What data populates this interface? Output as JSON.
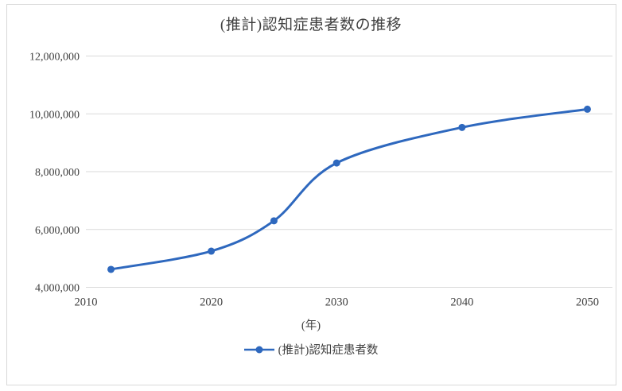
{
  "title": "(推計)認知症患者数の推移",
  "axis": {
    "x_label": "(年)"
  },
  "legend": {
    "label": "(推計)認知症患者数"
  },
  "colors": {
    "line": "#2e68be",
    "marker": "#2e68be",
    "grid": "#d9d9d9",
    "frame": "#d9d9d9",
    "text": "#404040",
    "background": "#ffffff"
  },
  "chart_data": {
    "type": "line",
    "title": "(推計)認知症患者数の推移",
    "x": [
      2012,
      2020,
      2025,
      2030,
      2040,
      2050
    ],
    "series": [
      {
        "name": "(推計)認知症患者数",
        "values": [
          4620000,
          5250000,
          6300000,
          8300000,
          9530000,
          10160000
        ]
      }
    ],
    "xlabel": "(年)",
    "ylabel": "",
    "xlim": [
      2010,
      2052
    ],
    "ylim": [
      4000000,
      12000000
    ],
    "y_tick_interval": 2000000,
    "y_tick_labels": [
      "12,000,000",
      "10,000,000",
      "8,000,000",
      "6,000,000",
      "4,000,000"
    ],
    "y_tick_values": [
      12000000,
      10000000,
      8000000,
      6000000,
      4000000
    ],
    "x_tick_labels": [
      "2010",
      "2020",
      "2030",
      "2040",
      "2050"
    ],
    "x_tick_values": [
      2010,
      2020,
      2030,
      2040,
      2050
    ],
    "grid": "horizontal",
    "legend_position": "bottom",
    "smooth_line": true,
    "markers": "circle"
  }
}
